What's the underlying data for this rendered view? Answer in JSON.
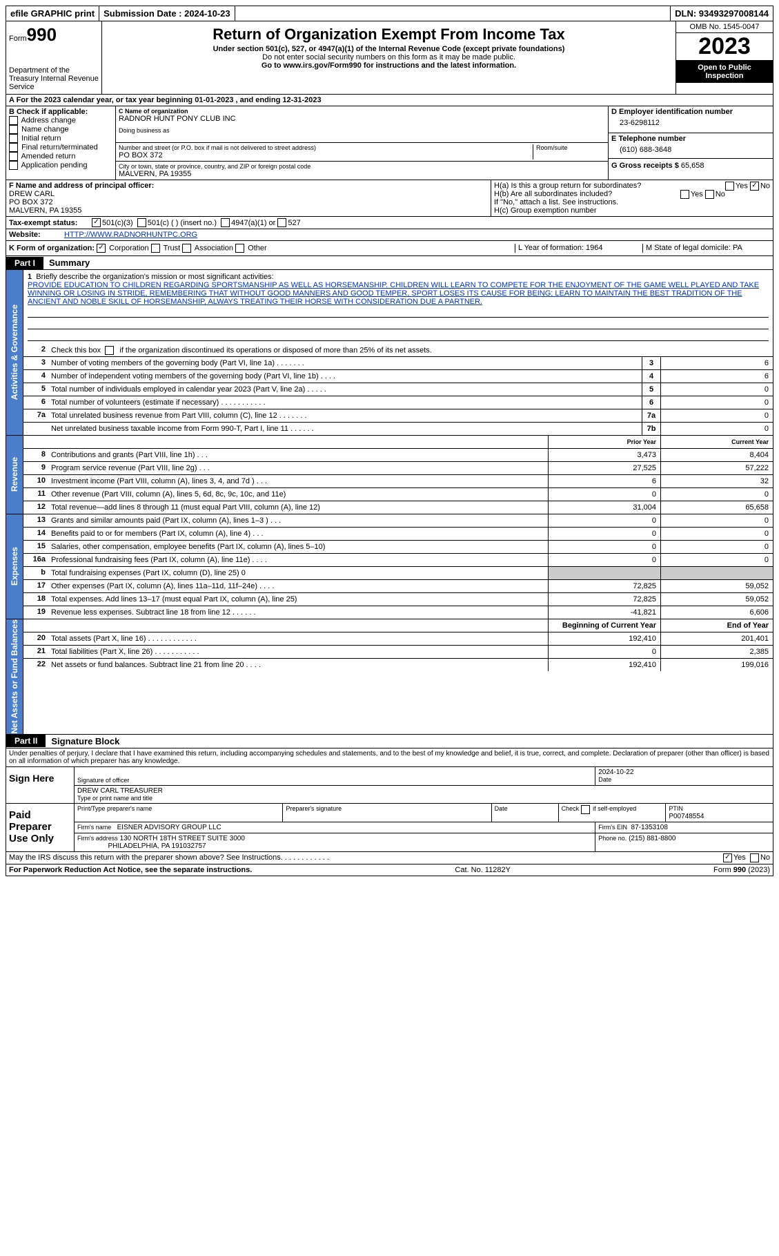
{
  "topbar": {
    "efile": "efile GRAPHIC print",
    "sub_label": "Submission Date : 2024-10-23",
    "dln": "DLN: 93493297008144"
  },
  "header": {
    "form_label": "Form",
    "form_num": "990",
    "dept": "Department of the Treasury Internal Revenue Service",
    "title": "Return of Organization Exempt From Income Tax",
    "subtitle": "Under section 501(c), 527, or 4947(a)(1) of the Internal Revenue Code (except private foundations)",
    "ssn_note": "Do not enter social security numbers on this form as it may be made public.",
    "goto": "Go to www.irs.gov/Form990 for instructions and the latest information.",
    "omb": "OMB No. 1545-0047",
    "year": "2023",
    "inspection": "Open to Public Inspection"
  },
  "a_line": "A For the 2023 calendar year, or tax year beginning 01-01-2023   , and ending 12-31-2023",
  "section_b": {
    "label": "B Check if applicable:",
    "items": [
      "Address change",
      "Name change",
      "Initial return",
      "Final return/terminated",
      "Amended return",
      "Application pending"
    ]
  },
  "section_c": {
    "name_label": "C Name of organization",
    "name": "RADNOR HUNT PONY CLUB INC",
    "dba_label": "Doing business as",
    "street_label": "Number and street (or P.O. box if mail is not delivered to street address)",
    "street": "PO BOX 372",
    "room_label": "Room/suite",
    "city_label": "City or town, state or province, country, and ZIP or foreign postal code",
    "city": "MALVERN, PA  19355"
  },
  "section_d": {
    "ein_label": "D Employer identification number",
    "ein": "23-6298112",
    "phone_label": "E Telephone number",
    "phone": "(610) 688-3648",
    "gross_label": "G Gross receipts $",
    "gross": "65,658"
  },
  "section_f": {
    "label": "F  Name and address of principal officer:",
    "name": "DREW CARL",
    "addr1": "PO BOX 372",
    "addr2": "MALVERN, PA  19355"
  },
  "section_h": {
    "ha": "H(a)  Is this a group return for subordinates?",
    "hb": "H(b)  Are all subordinates included?",
    "hb_note": "If \"No,\" attach a list. See instructions.",
    "hc": "H(c)  Group exemption number",
    "yes": "Yes",
    "no": "No"
  },
  "tax_exempt": {
    "i_label": "Tax-exempt status:",
    "opt1": "501(c)(3)",
    "opt2": "501(c) (  ) (insert no.)",
    "opt3": "4947(a)(1) or",
    "opt4": "527"
  },
  "website": {
    "label": "Website:",
    "url": "HTTP://WWW.RADNORHUNTPC.ORG"
  },
  "org_form": {
    "k_label": "K Form of organization:",
    "corp": "Corporation",
    "trust": "Trust",
    "assoc": "Association",
    "other": "Other",
    "l": "L Year of formation: 1964",
    "m": "M State of legal domicile: PA"
  },
  "part1": {
    "label": "Part I",
    "title": "Summary"
  },
  "summary": {
    "line1_label": "Briefly describe the organization's mission or most significant activities:",
    "mission": "PROVIDE EDUCATION TO CHILDREN REGARDING SPORTSMANSHIP AS WELL AS HORSEMANSHIP. CHILDREN WILL LEARN TO COMPETE FOR THE ENJOYMENT OF THE GAME WELL PLAYED AND TAKE WINNING OR LOSING IN STRIDE, REMEMBERING THAT WITHOUT GOOD MANNERS AND GOOD TEMPER, SPORT LOSES ITS CAUSE FOR BEING; LEARN TO MAINTAIN THE BEST TRADITION OF THE ANCIENT AND NOBLE SKILL OF HORSEMANSHIP, ALWAYS TREATING THEIR HORSE WITH CONSIDERATION DUE A PARTNER.",
    "line2": "Check this box       if the organization discontinued its operations or disposed of more than 25% of its net assets.",
    "rows_single": [
      {
        "n": "3",
        "d": "Number of voting members of the governing body (Part VI, line 1a)   .    .    .    .    .    .    .",
        "b": "3",
        "v": "6"
      },
      {
        "n": "4",
        "d": "Number of independent voting members of the governing body (Part VI, line 1b)  .    .    .    .",
        "b": "4",
        "v": "6"
      },
      {
        "n": "5",
        "d": "Total number of individuals employed in calendar year 2023 (Part V, line 2a)  .    .    .    .    .",
        "b": "5",
        "v": "0"
      },
      {
        "n": "6",
        "d": "Total number of volunteers (estimate if necessary)    .    .    .    .    .    .    .    .    .    .    .",
        "b": "6",
        "v": "0"
      },
      {
        "n": "7a",
        "d": "Total unrelated business revenue from Part VIII, column (C), line 12    .    .    .    .    .    .    .",
        "b": "7a",
        "v": "0"
      },
      {
        "n": "",
        "d": "Net unrelated business taxable income from Form 990-T, Part I, line 11   .    .    .    .    .    .",
        "b": "7b",
        "v": "0"
      }
    ],
    "hdr_prior": "Prior Year",
    "hdr_current": "Current Year",
    "revenue": [
      {
        "n": "8",
        "d": "Contributions and grants (Part VIII, line 1h)    .    .    .",
        "p": "3,473",
        "c": "8,404"
      },
      {
        "n": "9",
        "d": "Program service revenue (Part VIII, line 2g)    .    .    .",
        "p": "27,525",
        "c": "57,222"
      },
      {
        "n": "10",
        "d": "Investment income (Part VIII, column (A), lines 3, 4, and 7d )   .    .    .",
        "p": "6",
        "c": "32"
      },
      {
        "n": "11",
        "d": "Other revenue (Part VIII, column (A), lines 5, 6d, 8c, 9c, 10c, and 11e)",
        "p": "0",
        "c": "0"
      },
      {
        "n": "12",
        "d": "Total revenue—add lines 8 through 11 (must equal Part VIII, column (A), line 12)",
        "p": "31,004",
        "c": "65,658"
      }
    ],
    "expenses": [
      {
        "n": "13",
        "d": "Grants and similar amounts paid (Part IX, column (A), lines 1–3 )  .    .    .",
        "p": "0",
        "c": "0"
      },
      {
        "n": "14",
        "d": "Benefits paid to or for members (Part IX, column (A), line 4)  .    .    .",
        "p": "0",
        "c": "0"
      },
      {
        "n": "15",
        "d": "Salaries, other compensation, employee benefits (Part IX, column (A), lines 5–10)",
        "p": "0",
        "c": "0"
      },
      {
        "n": "16a",
        "d": "Professional fundraising fees (Part IX, column (A), line 11e)  .    .    .    .",
        "p": "0",
        "c": "0"
      },
      {
        "n": "b",
        "d": "Total fundraising expenses (Part IX, column (D), line 25) 0",
        "p": "",
        "c": "",
        "shaded": true
      },
      {
        "n": "17",
        "d": "Other expenses (Part IX, column (A), lines 11a–11d, 11f–24e)  .    .    .    .",
        "p": "72,825",
        "c": "59,052"
      },
      {
        "n": "18",
        "d": "Total expenses. Add lines 13–17 (must equal Part IX, column (A), line 25)",
        "p": "72,825",
        "c": "59,052"
      },
      {
        "n": "19",
        "d": "Revenue less expenses. Subtract line 18 from line 12   .    .    .    .    .    .",
        "p": "-41,821",
        "c": "6,606"
      }
    ],
    "hdr_begin": "Beginning of Current Year",
    "hdr_end": "End of Year",
    "netassets": [
      {
        "n": "20",
        "d": "Total assets (Part X, line 16)   .    .    .    .    .    .    .    .    .    .    .    .",
        "p": "192,410",
        "c": "201,401"
      },
      {
        "n": "21",
        "d": "Total liabilities (Part X, line 26)   .    .    .    .    .    .    .    .    .    .    .",
        "p": "0",
        "c": "2,385"
      },
      {
        "n": "22",
        "d": "Net assets or fund balances. Subtract line 21 from line 20   .    .    .    .",
        "p": "192,410",
        "c": "199,016"
      }
    ]
  },
  "side_labels": {
    "gov": "Activities & Governance",
    "rev": "Revenue",
    "exp": "Expenses",
    "net": "Net Assets or Fund Balances"
  },
  "part2": {
    "label": "Part II",
    "title": "Signature Block"
  },
  "penalties": "Under penalties of perjury, I declare that I have examined this return, including accompanying schedules and statements, and to the best of my knowledge and belief, it is true, correct, and complete. Declaration of preparer (other than officer) is based on all information of which preparer has any knowledge.",
  "sign": {
    "here": "Sign Here",
    "sig_label": "Signature of officer",
    "date_label": "Date",
    "date_val": "2024-10-22",
    "name": "DREW CARL  TREASURER",
    "name_label": "Type or print name and title"
  },
  "paid": {
    "label": "Paid Preparer Use Only",
    "print_label": "Print/Type preparer's name",
    "sig_label": "Preparer's signature",
    "date_label": "Date",
    "check_label": "Check      if self-employed",
    "ptin_label": "PTIN",
    "ptin": "P00748554",
    "firm_name_label": "Firm's name",
    "firm_name": "EISNER ADVISORY GROUP LLC",
    "firm_ein_label": "Firm's EIN",
    "firm_ein": "87-1353108",
    "firm_addr_label": "Firm's address",
    "firm_addr1": "130 NORTH 18TH STREET SUITE 3000",
    "firm_addr2": "PHILADELPHIA, PA  191032757",
    "phone_label": "Phone no.",
    "phone": "(215) 881-8800"
  },
  "discuss": "May the IRS discuss this return with the preparer shown above? See Instructions.   .    .    .    .    .    .    .    .    .    .    .",
  "footer": {
    "left": "For Paperwork Reduction Act Notice, see the separate instructions.",
    "mid": "Cat. No. 11282Y",
    "right": "Form 990 (2023)"
  }
}
